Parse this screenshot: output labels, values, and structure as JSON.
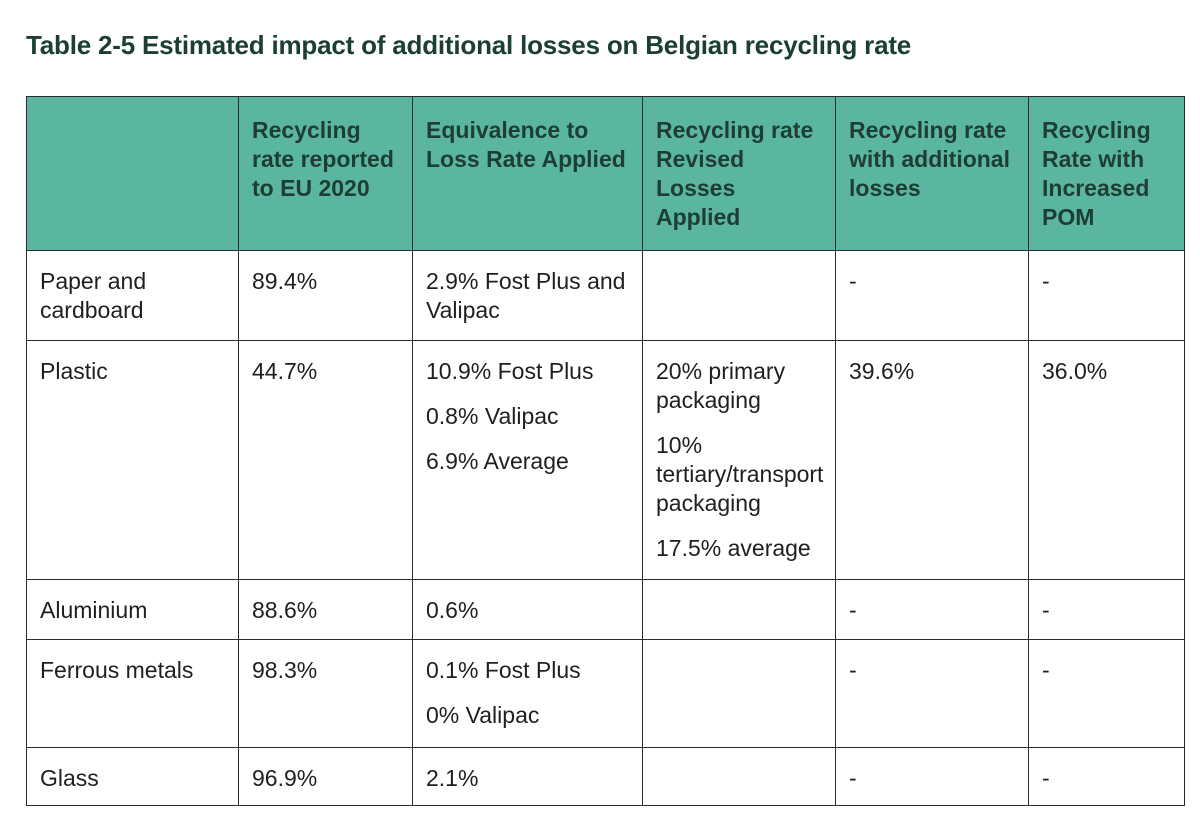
{
  "title": "Table 2-5 Estimated impact of additional losses on Belgian recycling rate",
  "headers": [
    "",
    "Recycling rate reported to EU 2020",
    "Equivalence to Loss Rate Applied",
    "Recycling rate Revised Losses Applied",
    "Recycling rate with additional losses",
    "Recycling Rate with Increased POM"
  ],
  "rows": {
    "paper": {
      "material": "Paper and cardboard",
      "reported": "89.4%",
      "equivalence": [
        "2.9% Fost Plus and Valipac"
      ],
      "revised": [],
      "additional": "-",
      "increased": "-"
    },
    "plastic": {
      "material": "Plastic",
      "reported": "44.7%",
      "equivalence": [
        "10.9% Fost Plus",
        "0.8% Valipac",
        "6.9% Average"
      ],
      "revised": [
        "20% primary packaging",
        "10% tertiary/transport packaging",
        "17.5% average"
      ],
      "additional": "39.6%",
      "increased": "36.0%"
    },
    "aluminium": {
      "material": "Aluminium",
      "reported": "88.6%",
      "equivalence": [
        "0.6%"
      ],
      "revised": [],
      "additional": "-",
      "increased": "-"
    },
    "ferrous": {
      "material": "Ferrous metals",
      "reported": "98.3%",
      "equivalence": [
        "0.1% Fost Plus",
        "0% Valipac"
      ],
      "revised": [],
      "additional": "-",
      "increased": "-"
    },
    "glass": {
      "material": "Glass",
      "reported": "96.9%",
      "equivalence": [
        "2.1%"
      ],
      "revised": [],
      "additional": "-",
      "increased": "-"
    }
  },
  "colors": {
    "header_bg": "#5ab6a0",
    "title_text": "#1b4032",
    "border": "#2b2b2b"
  }
}
